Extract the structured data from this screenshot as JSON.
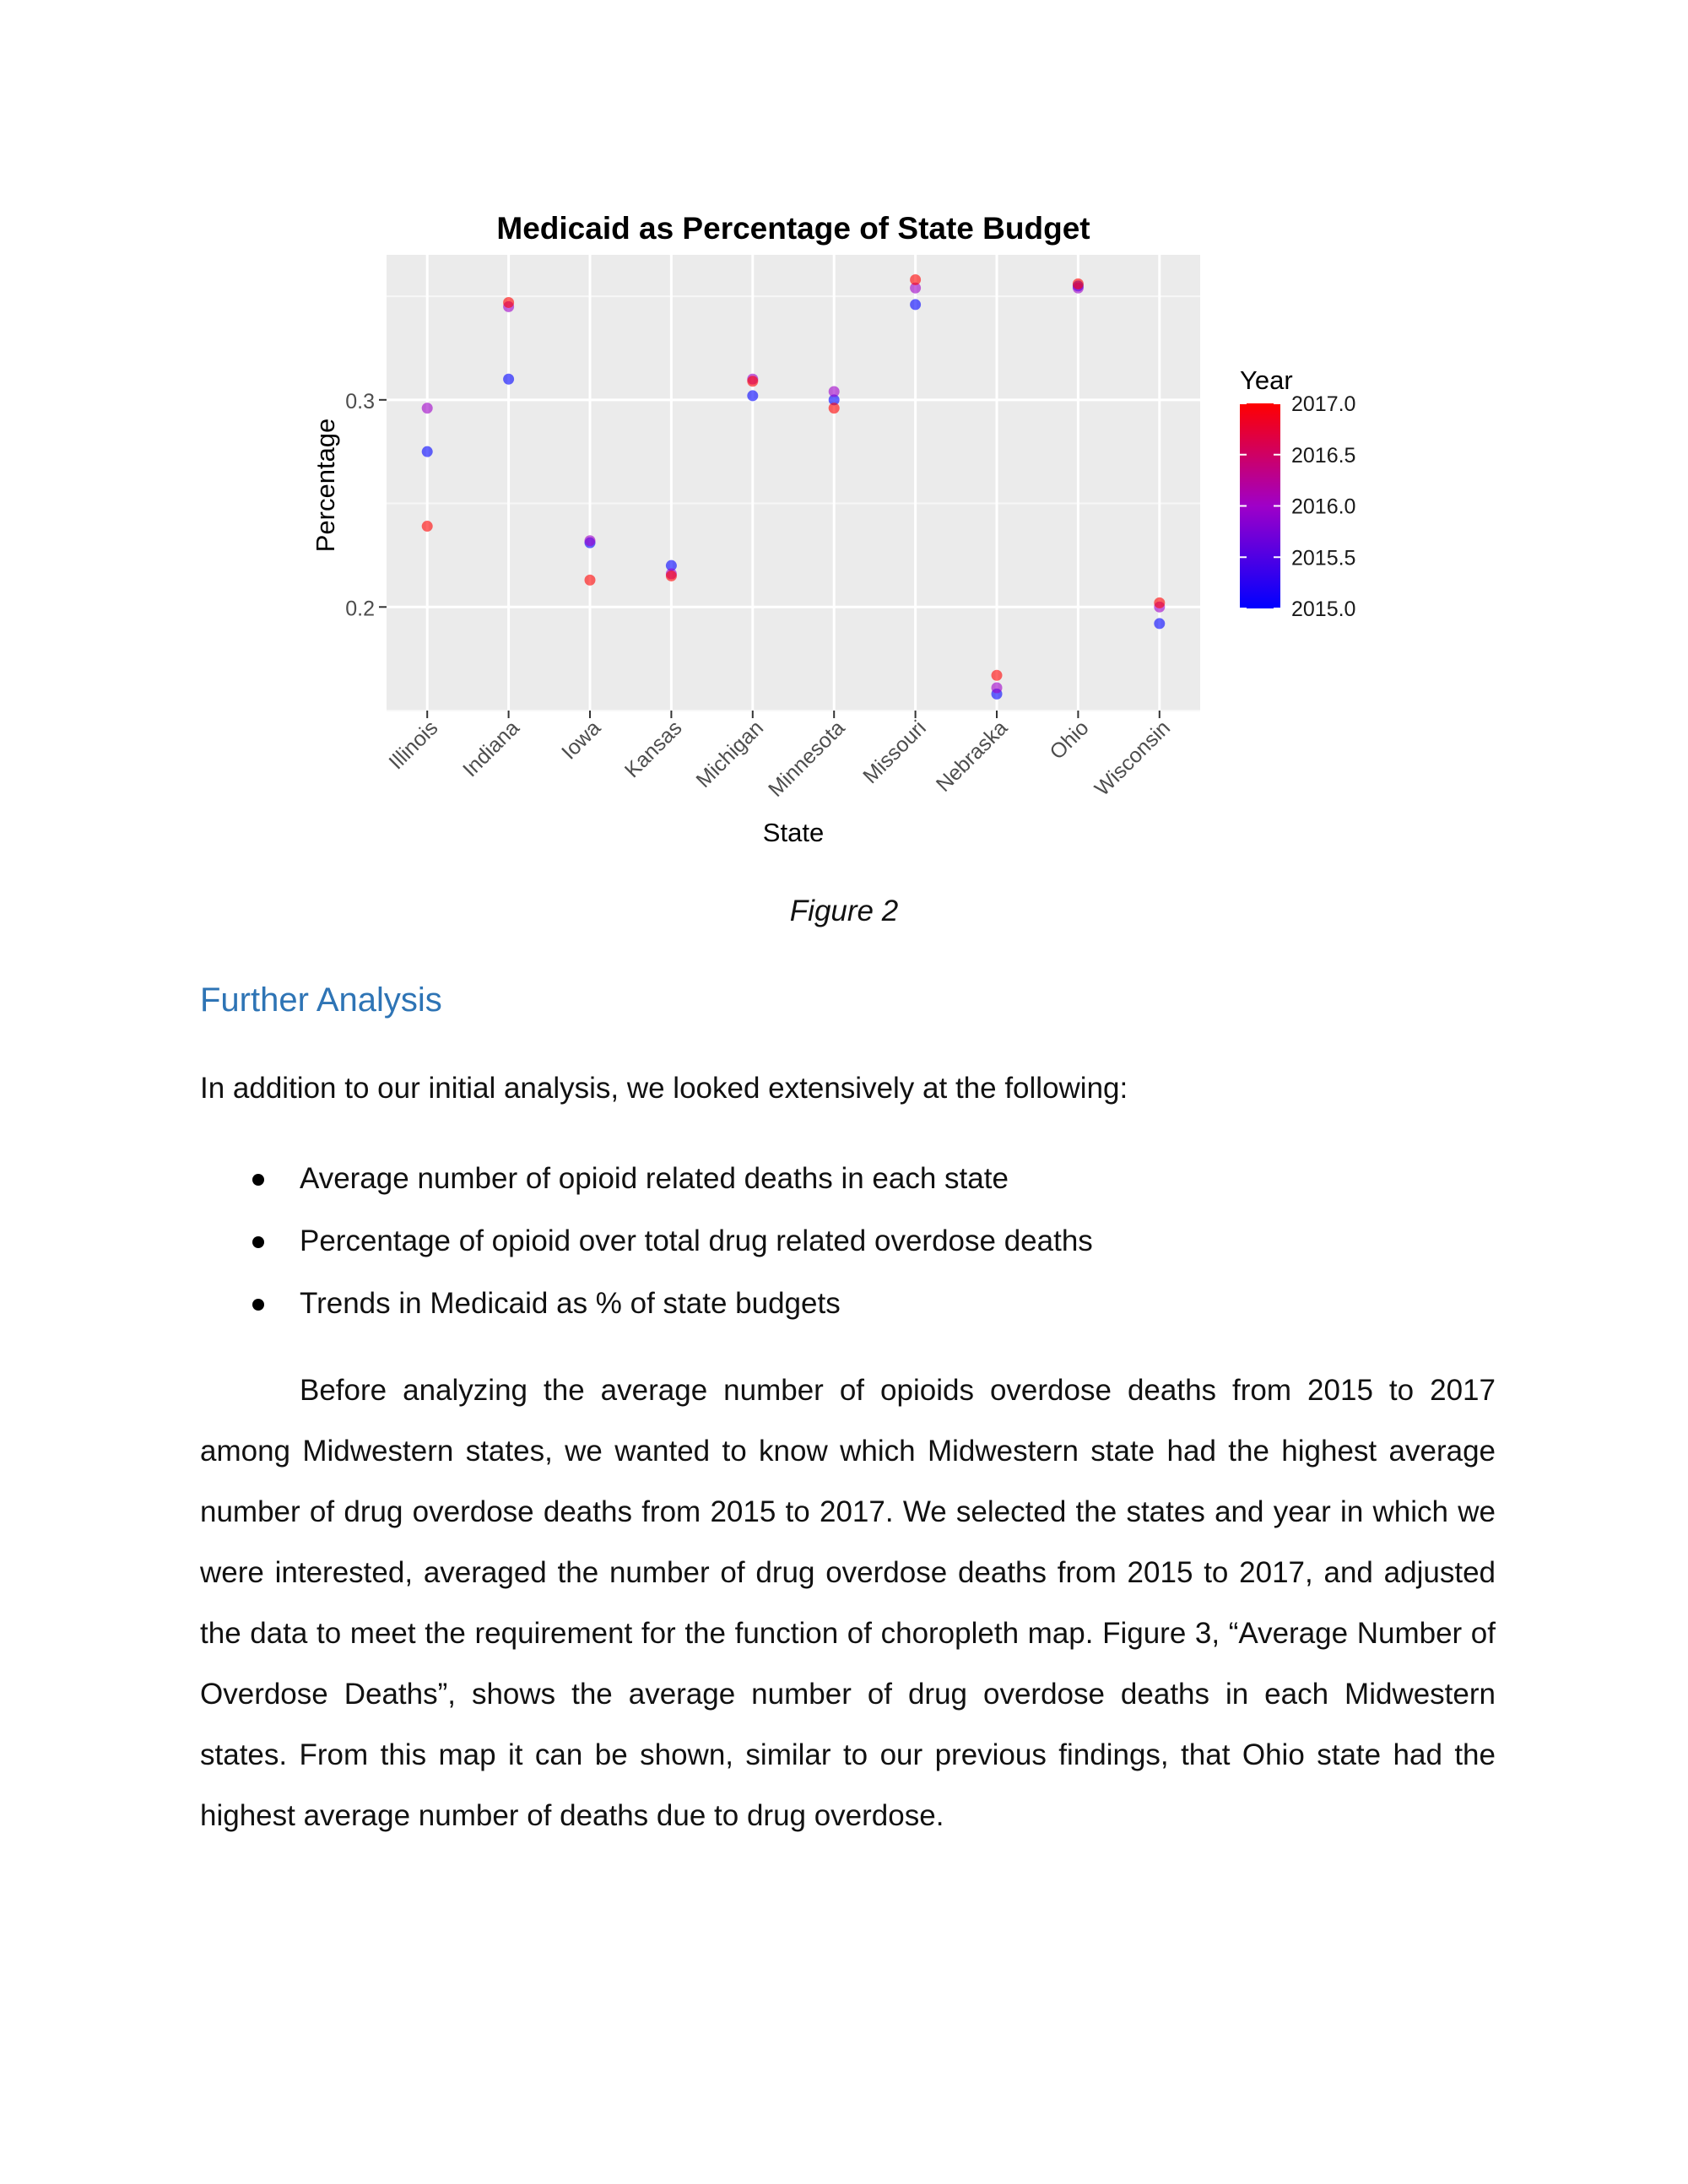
{
  "chart_data": {
    "type": "scatter",
    "title": "Medicaid as Percentage of State Budget",
    "xlabel": "State",
    "ylabel": "Percentage",
    "categories": [
      "Illinois",
      "Indiana",
      "Iowa",
      "Kansas",
      "Michigan",
      "Minnesota",
      "Missouri",
      "Nebraska",
      "Ohio",
      "Wisconsin"
    ],
    "ylim": [
      0.15,
      0.37
    ],
    "yticks": [
      0.2,
      0.3
    ],
    "ytick_labels": [
      "0.2",
      "0.3"
    ],
    "grid": true,
    "legend": {
      "title": "Year",
      "placement": "right",
      "type": "colorbar",
      "range": [
        2015.0,
        2017.0
      ],
      "ticks": [
        "2017.0",
        "2016.5",
        "2016.0",
        "2015.5",
        "2015.0"
      ],
      "color_low": "#0000ff",
      "color_high": "#ff0000"
    },
    "points": [
      {
        "state": "Illinois",
        "year": 2015,
        "value": 0.275
      },
      {
        "state": "Illinois",
        "year": 2016,
        "value": 0.296
      },
      {
        "state": "Illinois",
        "year": 2017,
        "value": 0.239
      },
      {
        "state": "Indiana",
        "year": 2015,
        "value": 0.31
      },
      {
        "state": "Indiana",
        "year": 2016,
        "value": 0.345
      },
      {
        "state": "Indiana",
        "year": 2017,
        "value": 0.347
      },
      {
        "state": "Iowa",
        "year": 2015,
        "value": 0.231
      },
      {
        "state": "Iowa",
        "year": 2016,
        "value": 0.232
      },
      {
        "state": "Iowa",
        "year": 2017,
        "value": 0.213
      },
      {
        "state": "Kansas",
        "year": 2015,
        "value": 0.22
      },
      {
        "state": "Kansas",
        "year": 2016,
        "value": 0.216
      },
      {
        "state": "Kansas",
        "year": 2017,
        "value": 0.215
      },
      {
        "state": "Michigan",
        "year": 2015,
        "value": 0.302
      },
      {
        "state": "Michigan",
        "year": 2016,
        "value": 0.31
      },
      {
        "state": "Michigan",
        "year": 2017,
        "value": 0.309
      },
      {
        "state": "Minnesota",
        "year": 2015,
        "value": 0.3
      },
      {
        "state": "Minnesota",
        "year": 2016,
        "value": 0.304
      },
      {
        "state": "Minnesota",
        "year": 2017,
        "value": 0.296
      },
      {
        "state": "Missouri",
        "year": 2015,
        "value": 0.346
      },
      {
        "state": "Missouri",
        "year": 2016,
        "value": 0.354
      },
      {
        "state": "Missouri",
        "year": 2017,
        "value": 0.358
      },
      {
        "state": "Nebraska",
        "year": 2015,
        "value": 0.158
      },
      {
        "state": "Nebraska",
        "year": 2016,
        "value": 0.161
      },
      {
        "state": "Nebraska",
        "year": 2017,
        "value": 0.167
      },
      {
        "state": "Ohio",
        "year": 2015,
        "value": 0.355
      },
      {
        "state": "Ohio",
        "year": 2016,
        "value": 0.354
      },
      {
        "state": "Ohio",
        "year": 2017,
        "value": 0.356
      },
      {
        "state": "Wisconsin",
        "year": 2015,
        "value": 0.192
      },
      {
        "state": "Wisconsin",
        "year": 2016,
        "value": 0.2
      },
      {
        "state": "Wisconsin",
        "year": 2017,
        "value": 0.202
      }
    ]
  },
  "figure_caption": "Figure 2",
  "section_heading": "Further Analysis",
  "intro_text": "In addition to our initial analysis, we looked extensively at the following:",
  "bullets": [
    "Average number of opioid related deaths in each state",
    "Percentage of opioid over total drug related overdose deaths",
    "Trends in Medicaid as % of state budgets"
  ],
  "paragraph": "Before analyzing the average number of opioids overdose deaths from 2015 to 2017 among Midwestern states, we wanted to know which Midwestern state had the highest average number of drug overdose deaths from 2015 to 2017. We selected the states and year in which we were interested, averaged the number of drug overdose deaths from 2015 to 2017, and adjusted the data to meet the requirement for the function of choropleth map. Figure 3, “Average Number of Overdose Deaths”, shows the average number of drug overdose deaths in each Midwestern states. From this map it can be shown, similar to our previous findings, that Ohio state had the highest average number of deaths due to drug overdose."
}
